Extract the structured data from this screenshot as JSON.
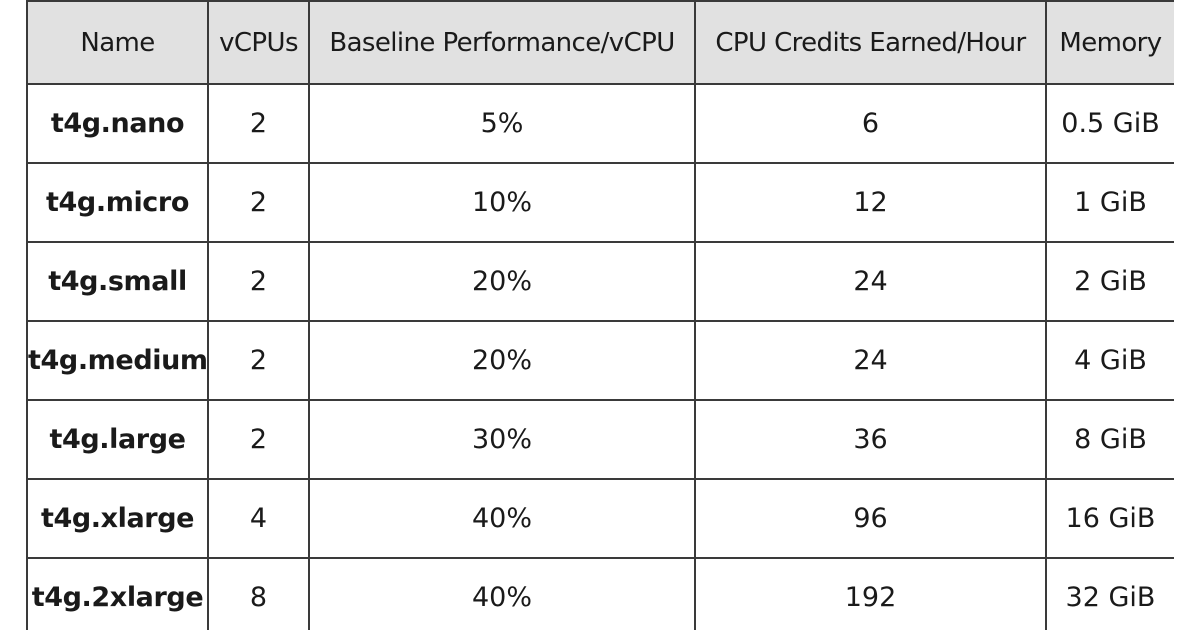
{
  "table": {
    "columns": [
      "Name",
      "vCPUs",
      "Baseline Performance/vCPU",
      "CPU Credits Earned/Hour",
      "Memory"
    ],
    "rows": [
      [
        "t4g.nano",
        "2",
        "5%",
        "6",
        "0.5 GiB"
      ],
      [
        "t4g.micro",
        "2",
        "10%",
        "12",
        "1 GiB"
      ],
      [
        "t4g.small",
        "2",
        "20%",
        "24",
        "2 GiB"
      ],
      [
        "t4g.medium",
        "2",
        "20%",
        "24",
        "4 GiB"
      ],
      [
        "t4g.large",
        "2",
        "30%",
        "36",
        "8 GiB"
      ],
      [
        "t4g.xlarge",
        "4",
        "40%",
        "96",
        "16 GiB"
      ],
      [
        "t4g.2xlarge",
        "8",
        "40%",
        "192",
        "32 GiB"
      ]
    ]
  },
  "colors": {
    "header_background": "#e1e1e1",
    "border": "#3a3a3a",
    "text": "#1a1a1a"
  }
}
